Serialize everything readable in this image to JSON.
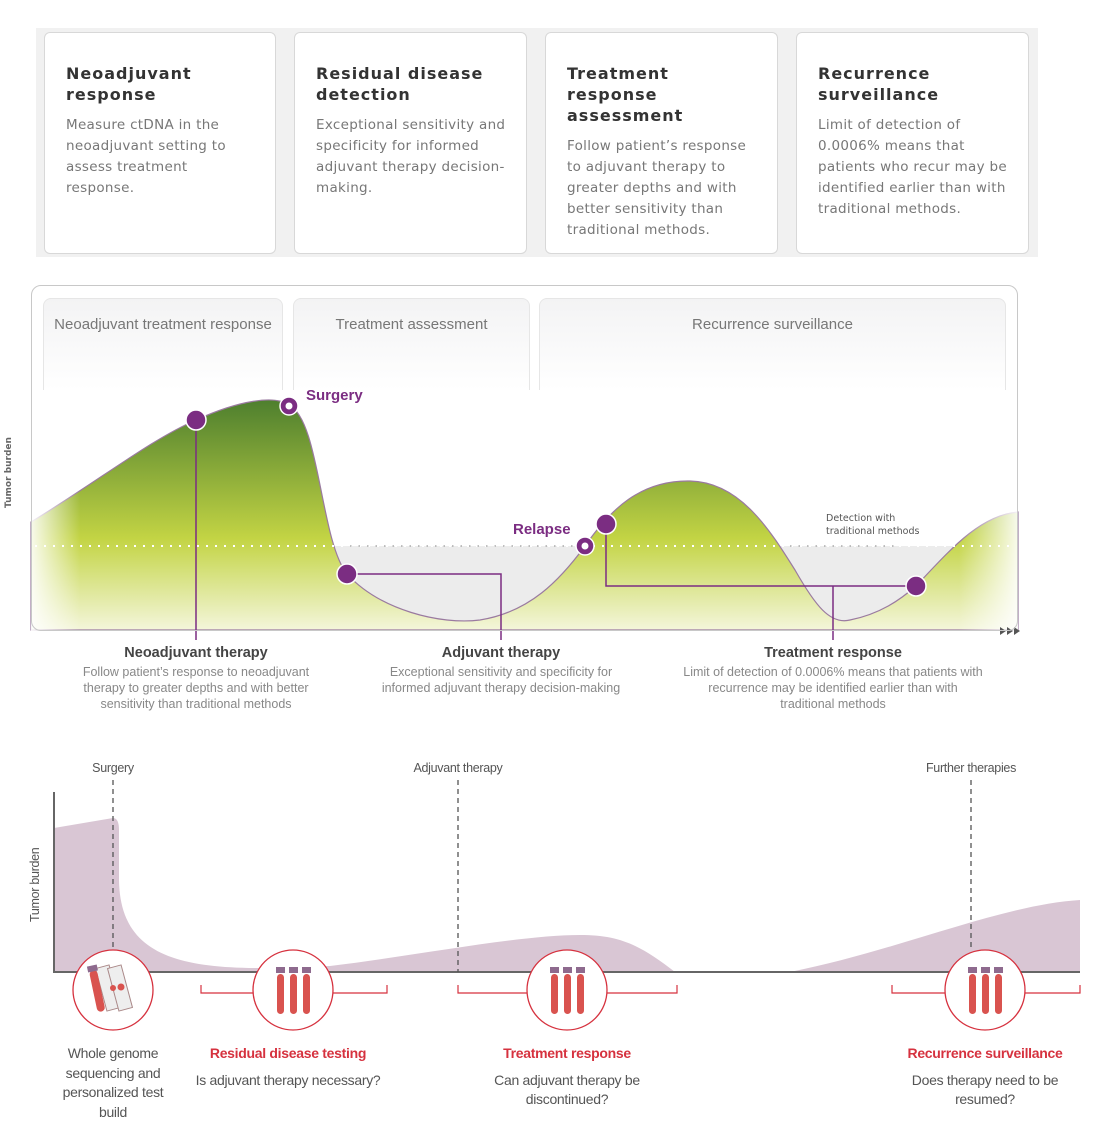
{
  "cards": [
    {
      "title": "Neoadjuvant response",
      "text": "Measure ctDNA in the neoadjuvant setting to assess treatment response."
    },
    {
      "title": "Residual disease detection",
      "text": "Exceptional sensitivity and specificity for informed adjuvant therapy decision-making."
    },
    {
      "title": "Treatment response assessment",
      "text": "Follow patient’s response to adjuvant therapy to greater depths and with better sensitivity than traditional methods."
    },
    {
      "title": "Recurrence surveillance",
      "text": "Limit of detection of 0.0006% means that patients who recur may be identified earlier than with traditional methods."
    }
  ],
  "middle": {
    "y_axis_label": "Tumor burden",
    "phases": [
      "Neoadjuvant treatment response",
      "Treatment assessment",
      "Recurrence surveillance"
    ],
    "markers": {
      "surgery": "Surgery",
      "relapse": "Relapse"
    },
    "threshold_label": "Detection with traditional methods",
    "labels": [
      {
        "title": "Neoadjuvant therapy",
        "text": "Follow patient’s response to neoadjuvant therapy to greater depths and with better sensitivity than traditional methods"
      },
      {
        "title": "Adjuvant therapy",
        "text": "Exceptional sensitivity and specificity for informed adjuvant therapy decision-making"
      },
      {
        "title": "Treatment response",
        "text": "Limit of detection of 0.0006% means that patients with recurrence may be identified earlier than with traditional methods"
      }
    ],
    "colors": {
      "marker": "#7b2d82",
      "curve_dark": "#4e7f2e",
      "curve_light": "#c5d647"
    }
  },
  "bottom": {
    "y_axis_label": "Tumor burden",
    "events": [
      "Surgery",
      "Adjuvant therapy",
      "Further therapies"
    ],
    "steps": [
      {
        "icon": "tube-and-slides-icon",
        "title": "",
        "text": "Whole genome sequencing and personalized test build"
      },
      {
        "icon": "blood-tubes-icon",
        "title": "Residual disease testing",
        "text": "Is adjuvant therapy necessary?"
      },
      {
        "icon": "blood-tubes-icon",
        "title": "Treatment response",
        "text": "Can adjuvant therapy be discontinued?"
      },
      {
        "icon": "blood-tubes-icon",
        "title": "Recurrence surveillance",
        "text": "Does therapy need to be resumed?"
      }
    ],
    "colors": {
      "accent": "#d6323f",
      "area": "#d9c6d4"
    }
  }
}
